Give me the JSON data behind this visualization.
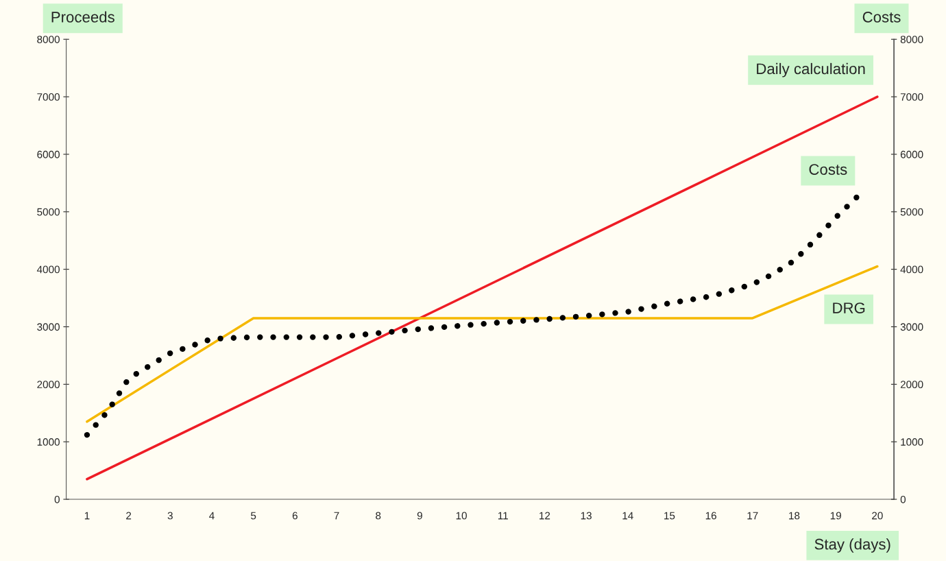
{
  "chart_data": {
    "type": "line",
    "xlabel": "Stay (days)",
    "ylabel": "Proceeds",
    "y2label": "Costs",
    "xlim": [
      0.5,
      20.4
    ],
    "xticks": [
      1,
      2,
      3,
      4,
      5,
      6,
      7,
      8,
      9,
      10,
      11,
      12,
      13,
      14,
      15,
      16,
      17,
      18,
      19,
      20
    ],
    "ylim": [
      0,
      8000
    ],
    "yticks": [
      0,
      1000,
      2000,
      3000,
      4000,
      5000,
      6000,
      7000,
      8000
    ],
    "y2lim": [
      0,
      8000
    ],
    "y2ticks": [
      0,
      1000,
      2000,
      3000,
      4000,
      5000,
      6000,
      7000,
      8000
    ],
    "grid": false,
    "legend": false,
    "series": [
      {
        "name": "Daily calculation",
        "color": "#ee1c25",
        "line_style": "solid",
        "x": [
          1,
          20
        ],
        "values": [
          350,
          7000
        ]
      },
      {
        "name": "DRG",
        "color": "#f5b800",
        "line_style": "solid",
        "x": [
          1,
          5,
          17,
          20
        ],
        "values": [
          1350,
          3150,
          3150,
          4050
        ]
      },
      {
        "name": "Costs",
        "color": "#000000",
        "line_style": "dotted",
        "x": [
          1,
          1.5,
          2,
          3,
          4,
          5,
          6,
          7,
          8,
          9,
          10,
          11,
          12,
          13,
          14,
          15,
          16,
          17,
          17.5,
          18,
          18.5,
          19,
          19.5
        ],
        "values": [
          1120,
          1530,
          2100,
          2540,
          2790,
          2820,
          2820,
          2820,
          2890,
          2960,
          3020,
          3080,
          3130,
          3190,
          3260,
          3410,
          3530,
          3740,
          3920,
          4150,
          4510,
          4900,
          5250
        ]
      }
    ]
  }
}
